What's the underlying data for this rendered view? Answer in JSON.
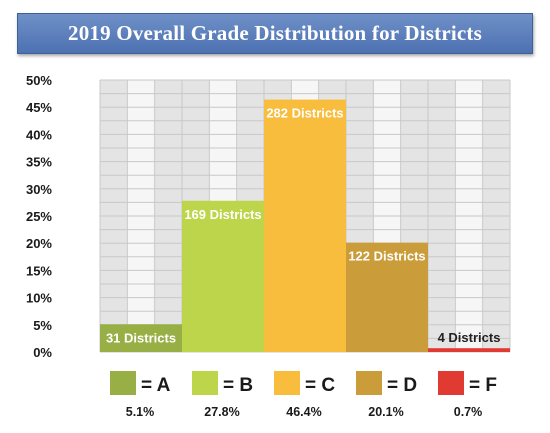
{
  "chart_data": {
    "type": "bar",
    "title": "2019 Overall Grade Distribution for Districts",
    "categories": [
      "A",
      "B",
      "C",
      "D",
      "F"
    ],
    "values": [
      5.1,
      27.8,
      46.4,
      20.1,
      0.7
    ],
    "bar_labels": [
      "31 Districts",
      "169 Districts",
      "282 Districts",
      "122 Districts",
      "4 Districts"
    ],
    "legend_keys": [
      "= A",
      "= B",
      "= C",
      "= D",
      "= F"
    ],
    "legend_percents": [
      "5.1%",
      "27.8%",
      "46.4%",
      "20.1%",
      "0.7%"
    ],
    "colors": [
      "#97af45",
      "#bcd54a",
      "#f9bd3e",
      "#cb9c3a",
      "#e03a33"
    ],
    "y_ticks": [
      "0%",
      "5%",
      "10%",
      "15%",
      "20%",
      "25%",
      "30%",
      "35%",
      "40%",
      "45%",
      "50%"
    ],
    "ylim": [
      0,
      50
    ],
    "grid": true,
    "legend_position": "bottom",
    "xlabel": "",
    "ylabel": ""
  }
}
